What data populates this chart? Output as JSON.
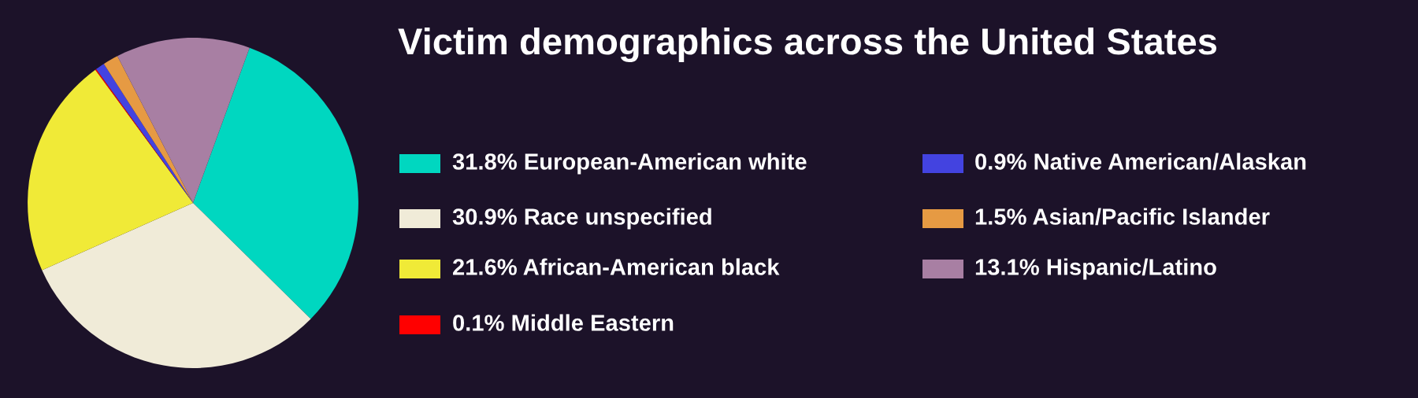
{
  "chart_data": {
    "type": "pie",
    "title": "Victim demographics across the United States",
    "categories": [
      "European-American white",
      "Race unspecified",
      "African-American black",
      "Middle Eastern",
      "Native American/Alaskan",
      "Asian/Pacific Islander",
      "Hispanic/Latino"
    ],
    "values": [
      31.8,
      30.9,
      21.6,
      0.1,
      0.9,
      1.5,
      13.1
    ],
    "value_labels": [
      "31.8%",
      "30.9%",
      "21.6%",
      "0.1%",
      "0.9%",
      "1.5%",
      "13.1%"
    ],
    "colors": [
      "#00d7c0",
      "#f0ebd8",
      "#f0ea37",
      "#ff0000",
      "#4343e0",
      "#e69a43",
      "#a87fa3"
    ],
    "legend": "right"
  }
}
